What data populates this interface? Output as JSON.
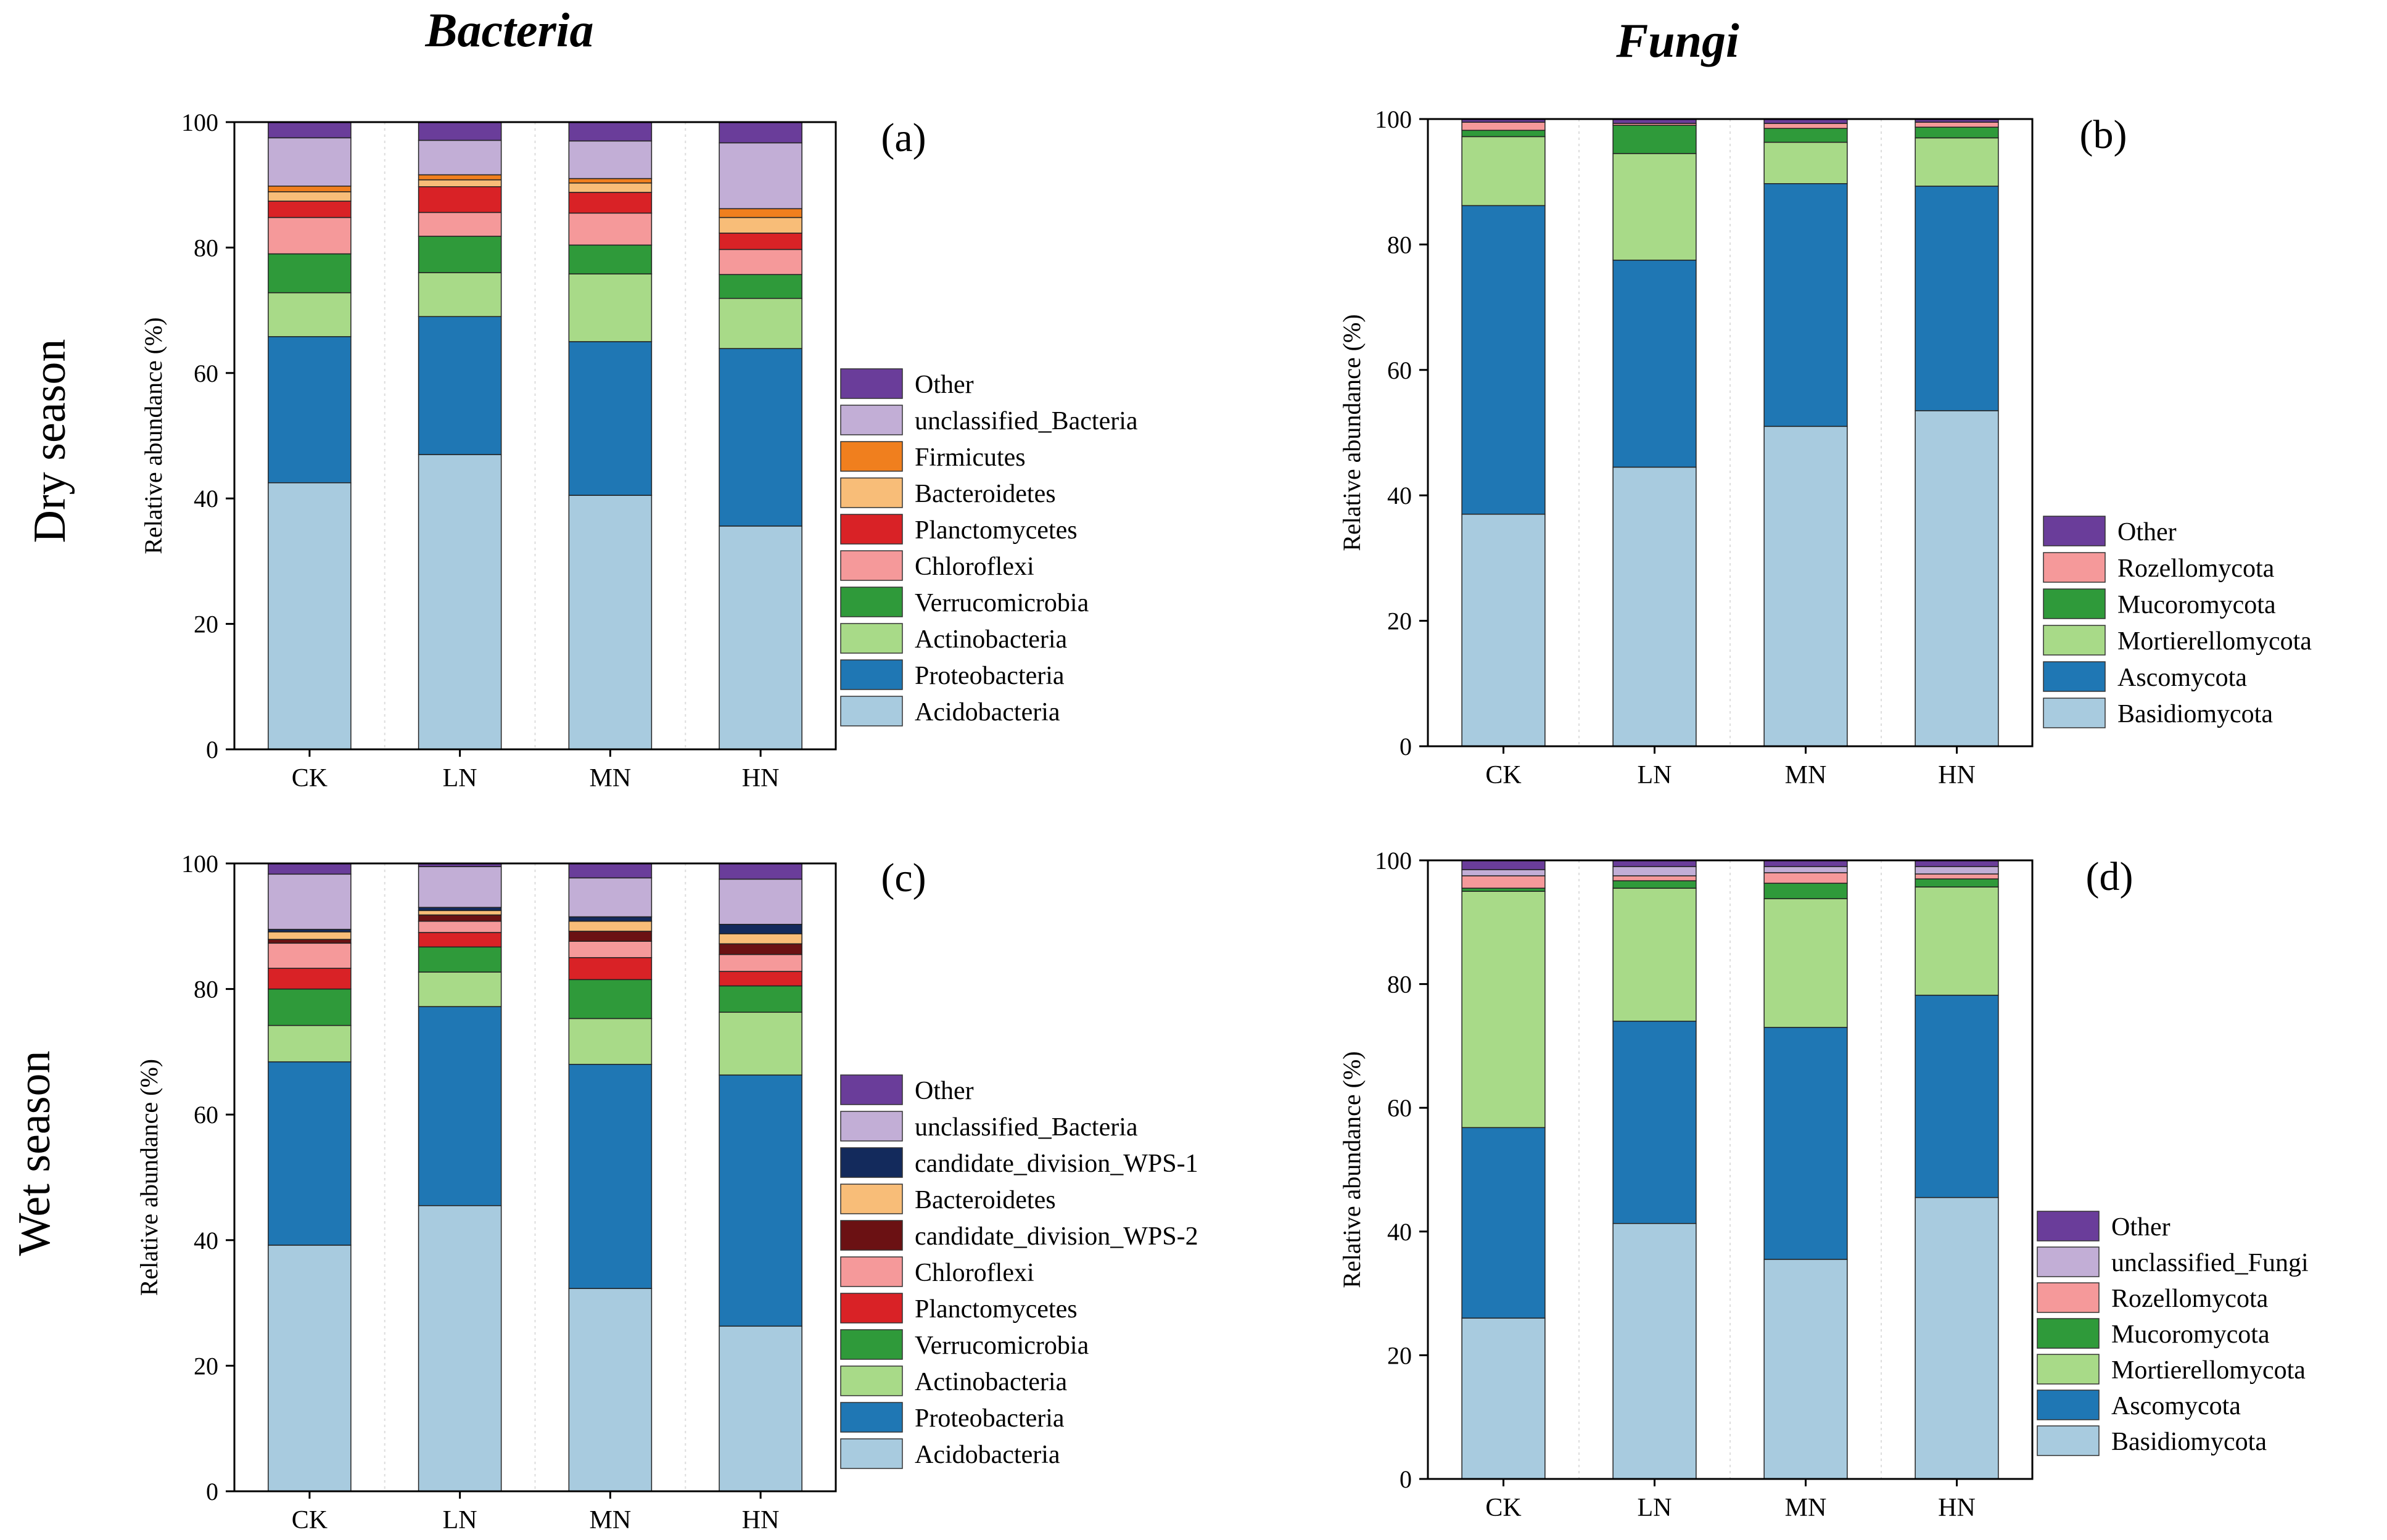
{
  "column_titles": {
    "bacteria": "Bacteria",
    "fungi": "Fungi"
  },
  "row_titles": {
    "dry": "Dry season",
    "wet": "Wet season"
  },
  "colors": {
    "Other": "#6a3d9a",
    "unclassified_Bacteria": "#c2aed6",
    "unclassified_Fungi": "#c2aed6",
    "Firmicutes": "#f07f1e",
    "Bacteroidetes": "#f8bd78",
    "Planctomycetes": "#d92226",
    "Chloroflexi": "#f5999a",
    "Verrucomicrobia": "#2f9a3a",
    "Actinobacteria": "#a8da88",
    "Proteobacteria": "#1f77b4",
    "Acidobacteria": "#a8cbdf",
    "candidate_division_WPS-1": "#132a5c",
    "candidate_division_WPS-2": "#6b1113",
    "Rozellomycota": "#f5999a",
    "Mucoromycota": "#2f9a3a",
    "Mortierellomycota": "#a8da88",
    "Ascomycota": "#1f77b4",
    "Basidiomycota": "#a8cbdf"
  },
  "chart_data": [
    {
      "panel": "(a)",
      "type": "bar",
      "stacked": true,
      "title": "",
      "xlabel": "",
      "ylabel": "Relative abundance (%)",
      "ylim": [
        0,
        100
      ],
      "yticks": [
        0,
        20,
        40,
        60,
        80,
        100
      ],
      "categories": [
        "CK",
        "LN",
        "MN",
        "HN"
      ],
      "series": [
        {
          "name": "Acidobacteria",
          "values": [
            42.5,
            47.0,
            40.5,
            35.6
          ]
        },
        {
          "name": "Proteobacteria",
          "values": [
            23.3,
            22.0,
            24.5,
            28.3
          ]
        },
        {
          "name": "Actinobacteria",
          "values": [
            7.0,
            7.0,
            10.8,
            8.0
          ]
        },
        {
          "name": "Verrucomicrobia",
          "values": [
            6.2,
            5.8,
            4.6,
            3.8
          ]
        },
        {
          "name": "Chloroflexi",
          "values": [
            5.8,
            3.8,
            5.1,
            4.0
          ]
        },
        {
          "name": "Planctomycetes",
          "values": [
            2.6,
            4.1,
            3.3,
            2.6
          ]
        },
        {
          "name": "Bacteroidetes",
          "values": [
            1.5,
            1.1,
            1.5,
            2.5
          ]
        },
        {
          "name": "Firmicutes",
          "values": [
            0.9,
            0.8,
            0.7,
            1.4
          ]
        },
        {
          "name": "unclassified_Bacteria",
          "values": [
            7.7,
            5.5,
            6.0,
            10.5
          ]
        },
        {
          "name": "Other",
          "values": [
            2.5,
            2.9,
            3.0,
            3.3
          ]
        }
      ],
      "legend": [
        "Other",
        "unclassified_Bacteria",
        "Firmicutes",
        "Bacteroidetes",
        "Planctomycetes",
        "Chloroflexi",
        "Verrucomicrobia",
        "Actinobacteria",
        "Proteobacteria",
        "Acidobacteria"
      ]
    },
    {
      "panel": "(b)",
      "type": "bar",
      "stacked": true,
      "title": "",
      "xlabel": "",
      "ylabel": "Relative abundance (%)",
      "ylim": [
        0,
        100
      ],
      "yticks": [
        0,
        20,
        40,
        60,
        80,
        100
      ],
      "categories": [
        "CK",
        "LN",
        "MN",
        "HN"
      ],
      "series": [
        {
          "name": "Basidiomycota",
          "values": [
            37.0,
            44.5,
            51.0,
            53.5
          ]
        },
        {
          "name": "Ascomycota",
          "values": [
            49.2,
            33.0,
            38.7,
            35.8
          ]
        },
        {
          "name": "Mortierellomycota",
          "values": [
            11.0,
            17.0,
            6.6,
            7.7
          ]
        },
        {
          "name": "Mucoromycota",
          "values": [
            1.0,
            4.5,
            2.2,
            1.7
          ]
        },
        {
          "name": "Rozellomycota",
          "values": [
            1.3,
            0.3,
            0.8,
            0.8
          ]
        },
        {
          "name": "Other",
          "values": [
            0.5,
            0.7,
            0.7,
            0.5
          ]
        }
      ],
      "legend": [
        "Other",
        "Rozellomycota",
        "Mucoromycota",
        "Mortierellomycota",
        "Ascomycota",
        "Basidiomycota"
      ]
    },
    {
      "panel": "(c)",
      "type": "bar",
      "stacked": true,
      "title": "",
      "xlabel": "",
      "ylabel": "Relative abundance (%)",
      "ylim": [
        0,
        100
      ],
      "yticks": [
        0,
        20,
        40,
        60,
        80,
        100
      ],
      "categories": [
        "CK",
        "LN",
        "MN",
        "HN"
      ],
      "series": [
        {
          "name": "Acidobacteria",
          "values": [
            39.2,
            45.5,
            32.3,
            26.3
          ]
        },
        {
          "name": "Proteobacteria",
          "values": [
            29.2,
            31.7,
            35.7,
            40.0
          ]
        },
        {
          "name": "Actinobacteria",
          "values": [
            5.8,
            5.5,
            7.3,
            10.0
          ]
        },
        {
          "name": "Verrucomicrobia",
          "values": [
            5.8,
            4.0,
            6.2,
            4.2
          ]
        },
        {
          "name": "Planctomycetes",
          "values": [
            3.3,
            2.3,
            3.5,
            2.3
          ]
        },
        {
          "name": "Chloroflexi",
          "values": [
            4.0,
            1.8,
            2.6,
            2.7
          ]
        },
        {
          "name": "candidate_division_WPS-2",
          "values": [
            0.6,
            1.0,
            1.6,
            1.7
          ]
        },
        {
          "name": "Bacteroidetes",
          "values": [
            1.2,
            0.7,
            1.6,
            1.6
          ]
        },
        {
          "name": "candidate_division_WPS-1",
          "values": [
            0.4,
            0.5,
            0.7,
            1.5
          ]
        },
        {
          "name": "unclassified_Bacteria",
          "values": [
            8.8,
            6.5,
            6.2,
            7.2
          ]
        },
        {
          "name": "Other",
          "values": [
            1.7,
            0.5,
            2.3,
            2.5
          ]
        }
      ],
      "legend": [
        "Other",
        "unclassified_Bacteria",
        "candidate_division_WPS-1",
        "Bacteroidetes",
        "candidate_division_WPS-2",
        "Chloroflexi",
        "Planctomycetes",
        "Verrucomicrobia",
        "Actinobacteria",
        "Proteobacteria",
        "Acidobacteria"
      ]
    },
    {
      "panel": "(d)",
      "type": "bar",
      "stacked": true,
      "title": "",
      "xlabel": "",
      "ylabel": "Relative abundance (%)",
      "ylim": [
        0,
        100
      ],
      "yticks": [
        0,
        20,
        40,
        60,
        80,
        100
      ],
      "categories": [
        "CK",
        "LN",
        "MN",
        "HN"
      ],
      "series": [
        {
          "name": "Basidiomycota",
          "values": [
            26.0,
            41.3,
            35.5,
            45.5
          ]
        },
        {
          "name": "Ascomycota",
          "values": [
            30.8,
            32.7,
            37.5,
            32.7
          ]
        },
        {
          "name": "Mortierellomycota",
          "values": [
            38.2,
            21.5,
            20.8,
            17.5
          ]
        },
        {
          "name": "Mucoromycota",
          "values": [
            0.5,
            1.2,
            2.5,
            1.3
          ]
        },
        {
          "name": "Rozellomycota",
          "values": [
            2.0,
            0.8,
            1.7,
            0.8
          ]
        },
        {
          "name": "unclassified_Fungi",
          "values": [
            1.0,
            1.5,
            1.0,
            1.2
          ]
        },
        {
          "name": "Other",
          "values": [
            1.5,
            1.0,
            1.0,
            1.0
          ]
        }
      ],
      "legend": [
        "Other",
        "unclassified_Fungi",
        "Rozellomycota",
        "Mucoromycota",
        "Mortierellomycota",
        "Ascomycota",
        "Basidiomycota"
      ]
    }
  ]
}
